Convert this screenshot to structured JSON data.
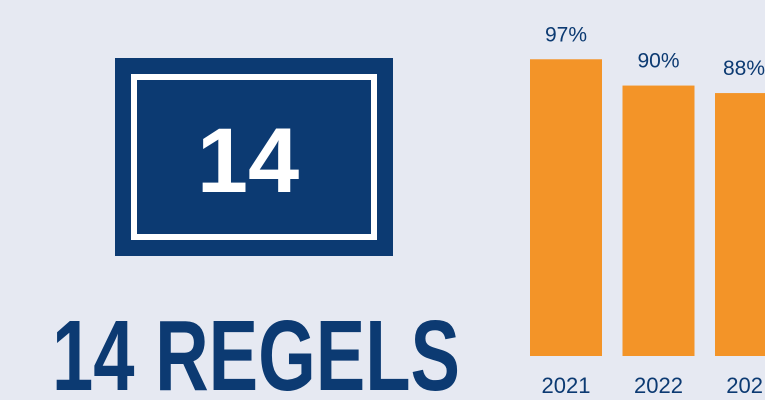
{
  "badge": {
    "number": "14"
  },
  "headline": "14 REGELS",
  "chart_data": {
    "type": "bar",
    "categories": [
      "2021",
      "2022",
      "202"
    ],
    "values": [
      97,
      90,
      88
    ],
    "value_labels": [
      "97%",
      "90%",
      "88%"
    ],
    "color": "#f39428",
    "ylim": [
      18,
      100
    ]
  }
}
